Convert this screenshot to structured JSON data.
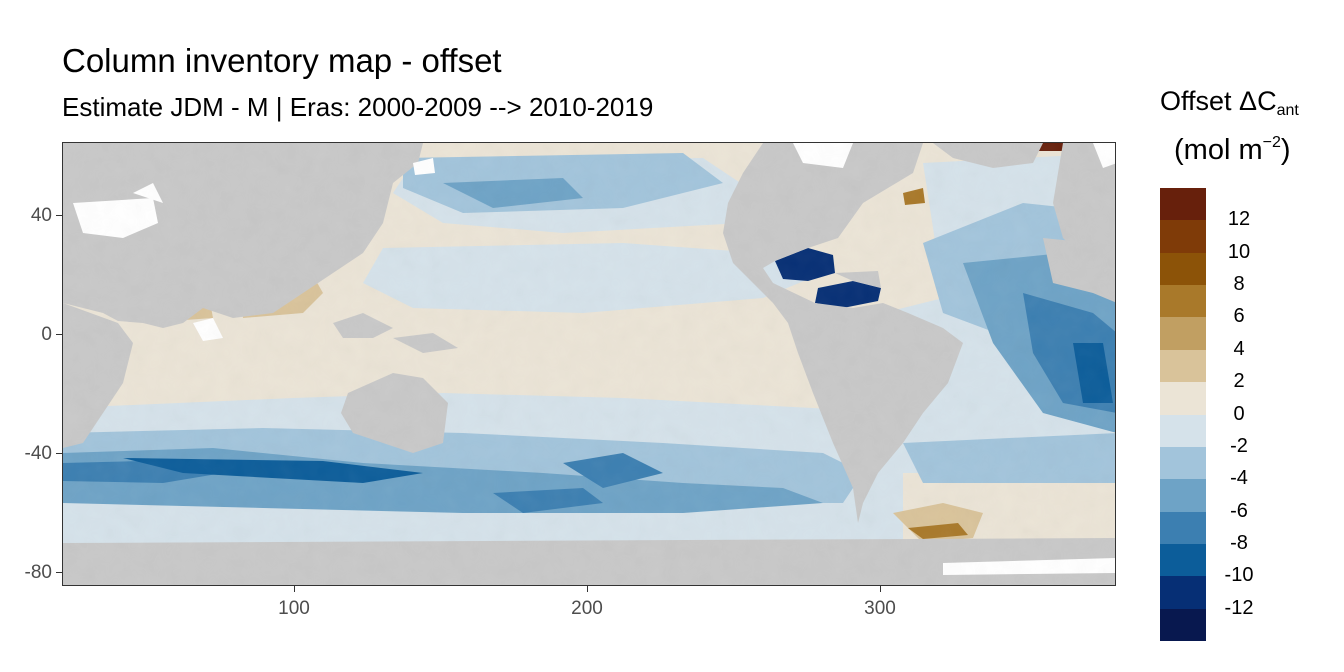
{
  "title": "Column inventory map - offset",
  "subtitle": "Estimate JDM - M | Eras: 2000-2009 --> 2010-2019",
  "legend": {
    "title_main": "Offset ΔC",
    "title_sub": "ant",
    "unit_prefix": "(mol m",
    "unit_exp": "−2",
    "unit_suffix": ")",
    "breaks": [
      "12",
      "10",
      "8",
      "6",
      "4",
      "2",
      "0",
      "-2",
      "-4",
      "-6",
      "-8",
      "-10",
      "-12"
    ],
    "colors": [
      "#67200c",
      "#7f3b08",
      "#8c5308",
      "#a9792a",
      "#c19f62",
      "#d9c39a",
      "#ebe4d6",
      "#d5e2ea",
      "#a2c4db",
      "#6ea3c6",
      "#3c7fb1",
      "#0c5d9a",
      "#062f75",
      "#08184f"
    ]
  },
  "axes": {
    "x_ticks": [
      "100",
      "200",
      "300"
    ],
    "y_ticks": [
      "40",
      "0",
      "-40",
      "-80"
    ],
    "x_range": [
      20,
      380
    ],
    "y_range": [
      -85,
      65
    ]
  },
  "map_colors": {
    "land": "#c8c8c8",
    "ice_gap": "#ffffff",
    "background_ocean": "#ebe4d6"
  }
}
